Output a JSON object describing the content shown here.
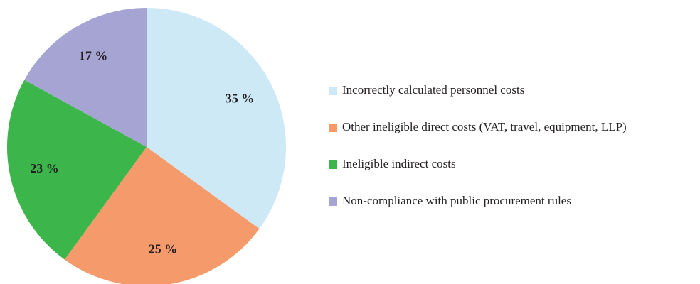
{
  "chart_data": {
    "type": "pie",
    "categories": [
      "Incorrectly calculated personnel costs",
      "Other ineligible direct costs (VAT, travel, equipment, LLP)",
      "Ineligible indirect costs",
      "Non-compliance with public procurement rules"
    ],
    "values": [
      35,
      25,
      23,
      17
    ],
    "value_labels": [
      "35 %",
      "25 %",
      "23 %",
      "17 %"
    ],
    "colors": [
      "#cde9f6",
      "#f59a6a",
      "#3cb54a",
      "#a6a4d3"
    ],
    "legend": "right"
  }
}
